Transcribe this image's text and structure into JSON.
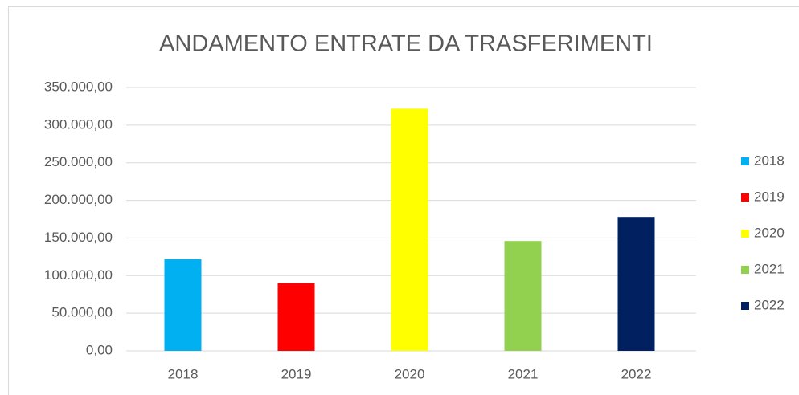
{
  "chart_data": {
    "type": "bar",
    "title": "ANDAMENTO ENTRATE DA TRASFERIMENTI",
    "categories": [
      "2018",
      "2019",
      "2020",
      "2021",
      "2022"
    ],
    "values": [
      122000,
      90000,
      322000,
      146000,
      178000
    ],
    "colors": [
      "#00b0f0",
      "#ff0000",
      "#ffff00",
      "#92d050",
      "#002060"
    ],
    "ylim": [
      0,
      350000
    ],
    "yticks": [
      {
        "value": 0,
        "label": "0,00"
      },
      {
        "value": 50000,
        "label": "50.000,00"
      },
      {
        "value": 100000,
        "label": "100.000,00"
      },
      {
        "value": 150000,
        "label": "150.000,00"
      },
      {
        "value": 200000,
        "label": "200.000,00"
      },
      {
        "value": 250000,
        "label": "250.000,00"
      },
      {
        "value": 300000,
        "label": "300.000,00"
      },
      {
        "value": 350000,
        "label": "350.000,00"
      }
    ],
    "grid": true,
    "legend": "right"
  }
}
